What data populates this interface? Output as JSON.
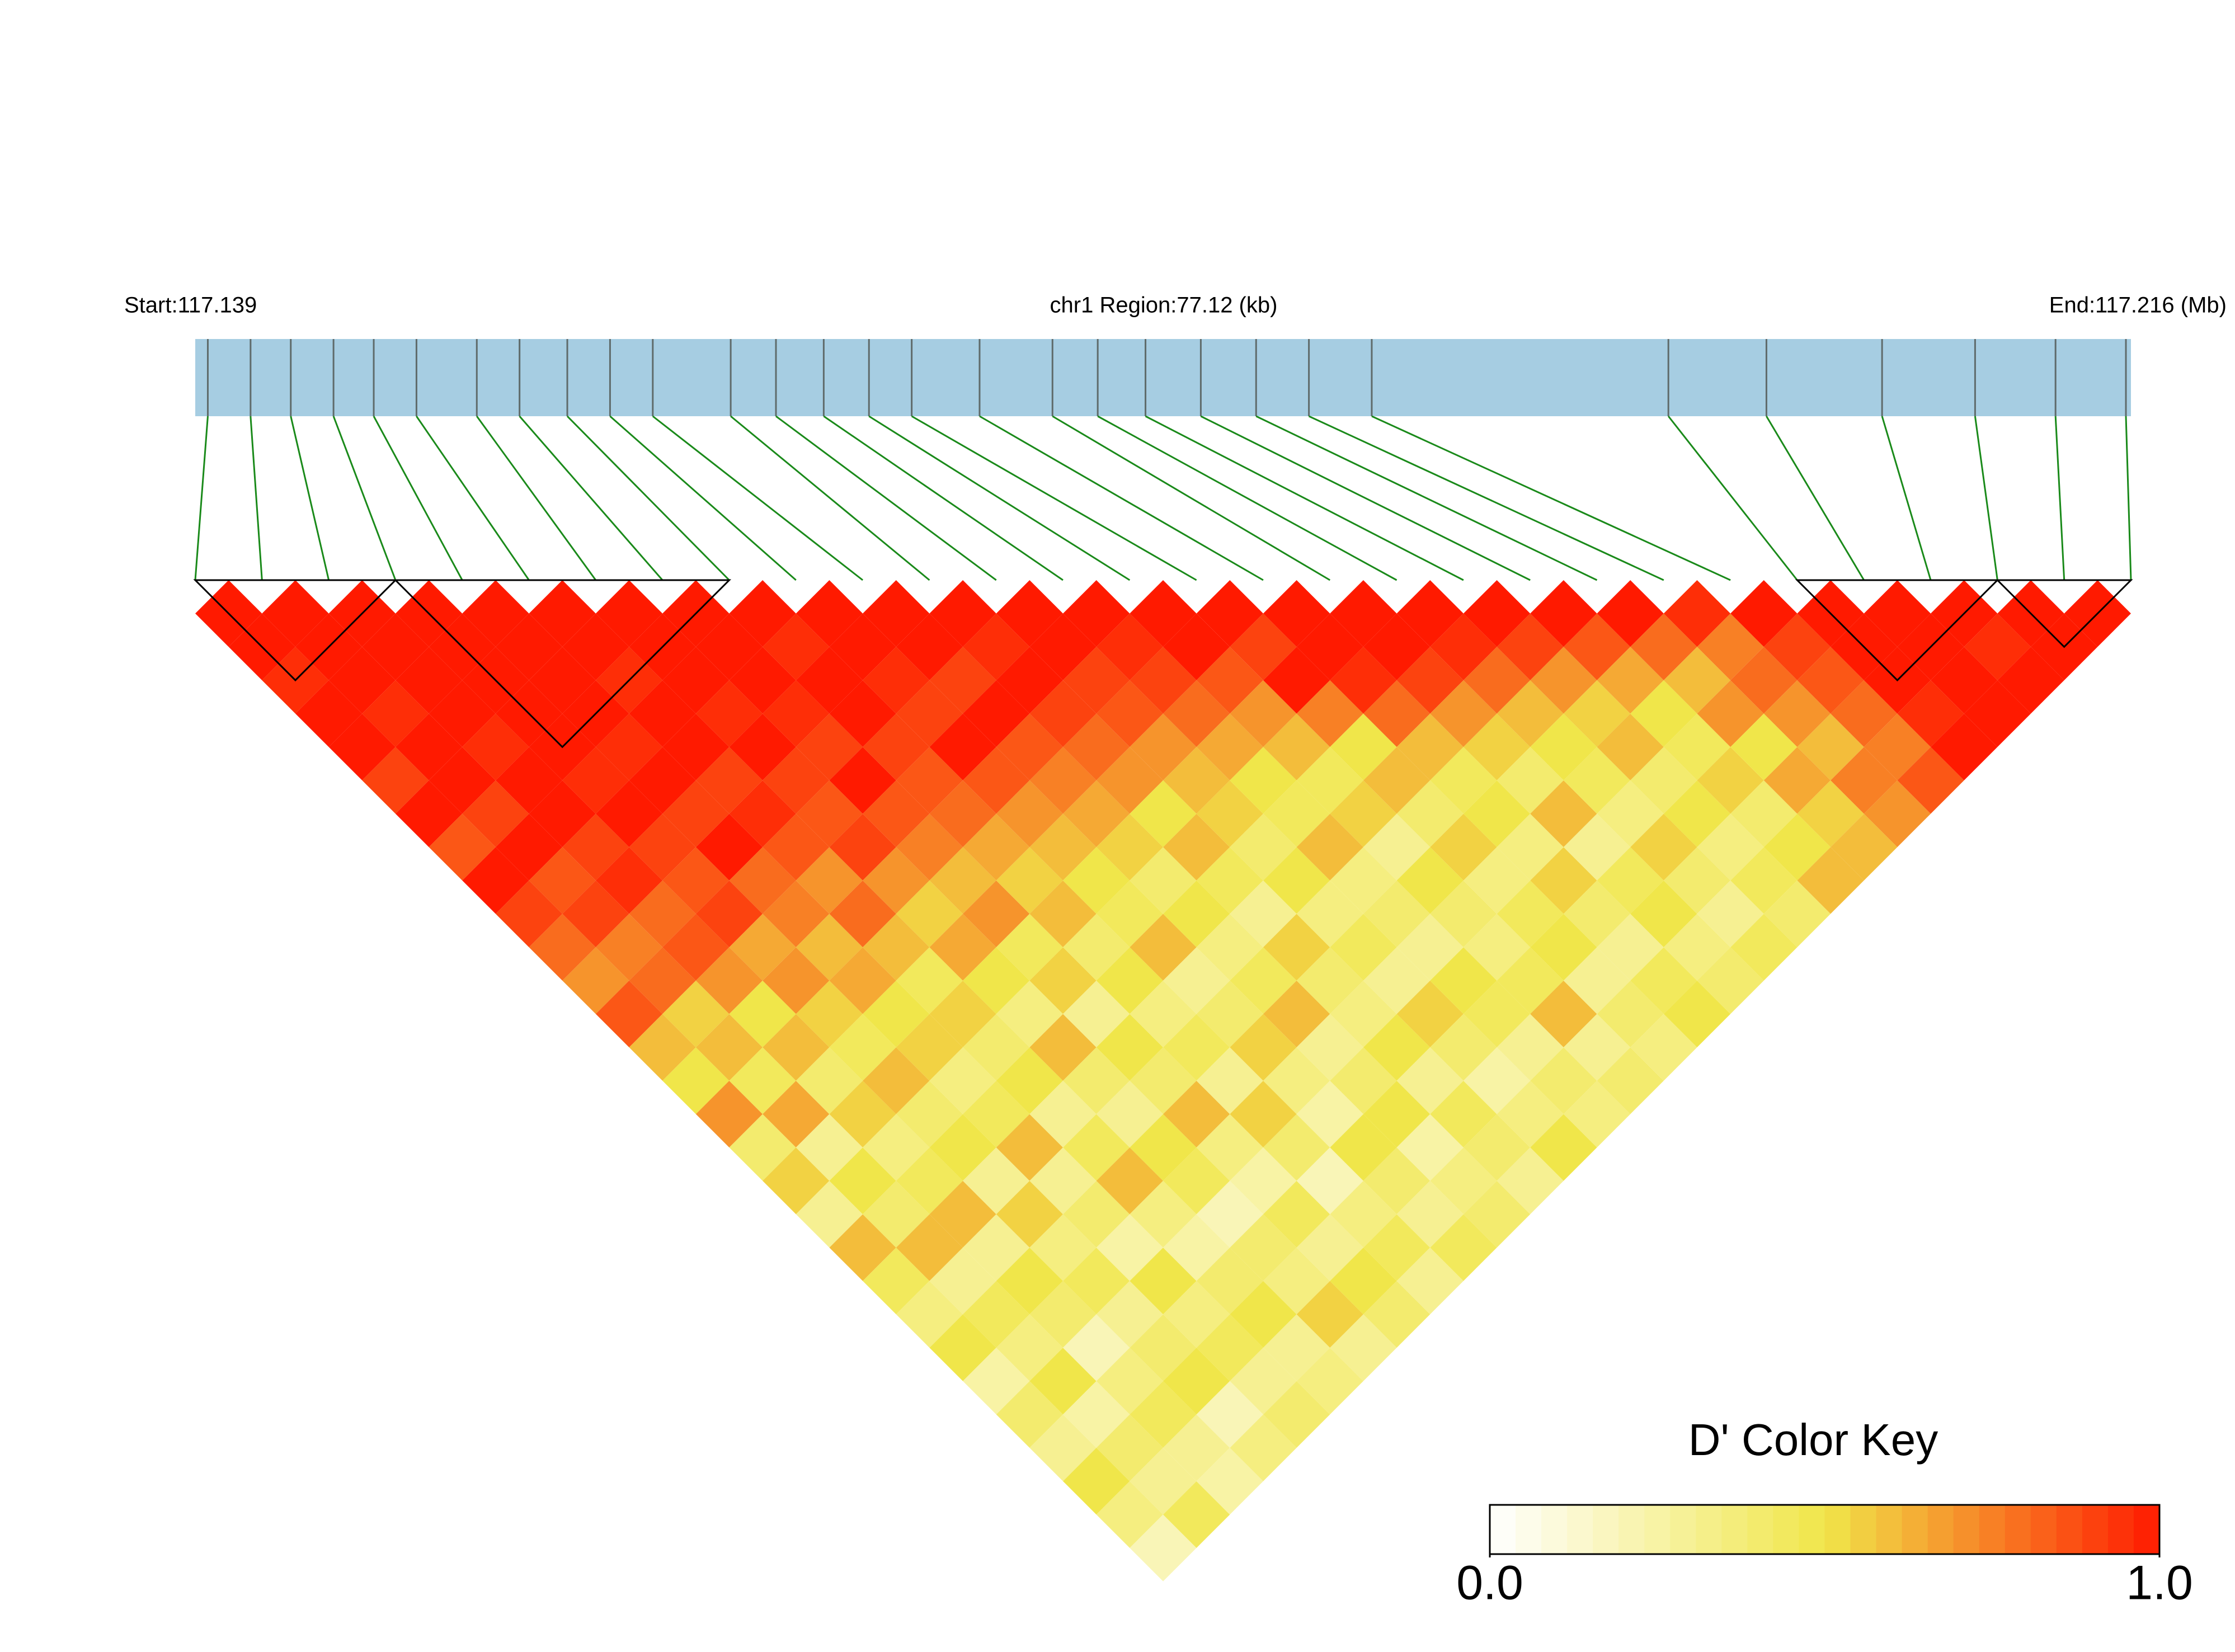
{
  "header": {
    "start": "Start:117.139",
    "region": "chr1 Region:77.12 (kb)",
    "end": "End:117.216 (Mb)"
  },
  "chart_data": {
    "type": "ld_heatmap",
    "xlim": [
      117.139,
      117.216
    ],
    "positions": [
      117.1395,
      117.1412,
      117.1428,
      117.1445,
      117.1461,
      117.1478,
      117.1502,
      117.1519,
      117.1538,
      117.1555,
      117.1572,
      117.1603,
      117.1621,
      117.164,
      117.1658,
      117.1675,
      117.1702,
      117.1731,
      117.1749,
      117.1768,
      117.179,
      117.1812,
      117.1833,
      117.1858,
      117.1976,
      117.2015,
      117.2061,
      117.2098,
      117.213,
      117.2158
    ],
    "marker_color": "#5f6b6b",
    "connector_color": "#1a8a1a",
    "track_color": "#a6cde2",
    "dprime": [
      [
        1,
        1,
        0.95,
        1,
        1,
        0.9,
        1,
        0.85,
        1,
        0.9,
        0.8,
        0.7,
        0.85,
        0.6,
        0.5,
        0.7,
        0.4,
        0.55,
        0.3,
        0.6,
        0.45,
        0.35,
        0.5,
        0.25,
        0.4,
        0.3,
        0.5,
        0.35,
        0.2
      ],
      [
        1,
        1,
        1,
        0.95,
        1,
        1,
        0.9,
        1,
        0.85,
        0.9,
        0.75,
        0.8,
        0.55,
        0.6,
        0.45,
        0.65,
        0.3,
        0.5,
        0.4,
        0.6,
        0.3,
        0.45,
        0.35,
        0.5,
        0.25,
        0.4,
        0.3,
        0.45
      ],
      [
        1,
        1,
        1,
        1,
        0.95,
        1,
        1,
        0.9,
        0.95,
        0.8,
        0.85,
        0.7,
        0.5,
        0.6,
        0.4,
        0.55,
        0.35,
        0.45,
        0.6,
        0.3,
        0.5,
        0.4,
        0.2,
        0.35,
        0.45,
        0.3,
        0.25
      ],
      [
        1,
        1,
        1,
        1,
        1,
        0.95,
        1,
        0.9,
        0.85,
        0.9,
        0.65,
        0.7,
        0.55,
        0.45,
        0.6,
        0.4,
        0.5,
        0.3,
        0.55,
        0.35,
        0.45,
        0.3,
        0.4,
        0.5,
        0.2,
        0.35
      ],
      [
        1,
        1,
        1,
        1,
        0.95,
        1,
        0.9,
        1,
        0.8,
        0.75,
        0.6,
        0.65,
        0.5,
        0.55,
        0.35,
        0.45,
        0.6,
        0.3,
        0.4,
        0.25,
        0.5,
        0.35,
        0.45,
        0.3,
        0.4
      ],
      [
        1,
        1,
        0.95,
        1,
        1,
        0.9,
        0.95,
        0.85,
        0.7,
        0.8,
        0.6,
        0.45,
        0.55,
        0.4,
        0.5,
        0.3,
        0.45,
        0.6,
        0.35,
        0.25,
        0.4,
        0.5,
        0.3,
        0.35
      ],
      [
        1,
        1,
        1,
        0.95,
        1,
        0.9,
        0.85,
        0.9,
        0.7,
        0.55,
        0.65,
        0.5,
        0.35,
        0.6,
        0.4,
        0.3,
        0.5,
        0.45,
        0.2,
        0.4,
        0.35,
        0.55,
        0.3
      ],
      [
        1,
        1,
        1,
        0.95,
        0.9,
        1,
        0.85,
        0.75,
        0.6,
        0.7,
        0.45,
        0.55,
        0.3,
        0.5,
        0.4,
        0.6,
        0.35,
        0.25,
        0.45,
        0.3,
        0.5,
        0.4
      ],
      [
        1,
        0.95,
        1,
        1,
        0.9,
        0.85,
        0.8,
        0.65,
        0.55,
        0.6,
        0.4,
        0.5,
        0.35,
        0.45,
        0.3,
        0.55,
        0.4,
        0.2,
        0.35,
        0.45,
        0.3
      ],
      [
        1,
        1,
        0.95,
        0.9,
        1,
        0.85,
        0.7,
        0.6,
        0.5,
        0.45,
        0.6,
        0.3,
        0.4,
        0.55,
        0.35,
        0.25,
        0.5,
        0.4,
        0.3,
        0.45
      ],
      [
        1,
        1,
        0.9,
        1,
        0.85,
        0.75,
        0.65,
        0.55,
        0.4,
        0.5,
        0.35,
        0.45,
        0.6,
        0.3,
        0.4,
        0.5,
        0.25,
        0.35,
        0.4
      ],
      [
        1,
        0.95,
        1,
        0.9,
        0.8,
        0.7,
        0.5,
        0.6,
        0.45,
        0.3,
        0.55,
        0.4,
        0.35,
        0.5,
        0.3,
        0.45,
        0.4,
        0.3
      ],
      [
        1,
        1,
        0.9,
        0.85,
        0.7,
        0.6,
        0.55,
        0.4,
        0.5,
        0.35,
        0.45,
        0.3,
        0.55,
        0.4,
        0.25,
        0.35,
        0.5
      ],
      [
        1,
        0.95,
        0.9,
        0.8,
        0.65,
        0.5,
        0.45,
        0.6,
        0.35,
        0.4,
        0.3,
        0.5,
        0.45,
        0.3,
        0.4,
        0.35
      ],
      [
        1,
        1,
        0.85,
        0.7,
        0.6,
        0.45,
        0.55,
        0.3,
        0.5,
        0.4,
        0.35,
        0.45,
        0.6,
        0.3,
        0.4
      ],
      [
        1,
        0.9,
        1,
        0.75,
        0.5,
        0.6,
        0.4,
        0.55,
        0.35,
        0.45,
        0.5,
        0.3,
        0.4,
        0.35
      ],
      [
        1,
        1,
        0.95,
        0.8,
        0.6,
        0.45,
        0.5,
        0.35,
        0.55,
        0.4,
        0.3,
        0.45,
        0.5
      ],
      [
        1,
        1,
        0.9,
        0.7,
        0.55,
        0.4,
        0.6,
        0.3,
        0.45,
        0.5,
        0.35,
        0.4
      ],
      [
        1,
        0.95,
        0.8,
        0.6,
        0.5,
        0.45,
        0.35,
        0.55,
        0.4,
        0.3,
        0.45
      ],
      [
        1,
        0.9,
        0.7,
        0.55,
        0.6,
        0.4,
        0.5,
        0.35,
        0.45,
        0.4
      ],
      [
        1,
        0.85,
        0.65,
        0.5,
        0.45,
        0.55,
        0.4,
        0.5,
        0.6
      ],
      [
        1,
        0.8,
        0.6,
        0.7,
        0.5,
        0.65,
        0.55,
        0.6
      ],
      [
        0.95,
        0.75,
        0.8,
        0.7,
        0.6,
        0.75,
        0.7
      ],
      [
        1,
        0.9,
        0.85,
        0.8,
        0.75,
        0.85
      ],
      [
        1,
        1,
        1,
        0.95,
        1
      ],
      [
        1,
        1,
        1,
        1
      ],
      [
        1,
        0.95,
        1
      ],
      [
        1,
        1
      ],
      [
        1
      ]
    ],
    "blocks": [
      [
        0,
        3
      ],
      [
        3,
        8
      ],
      [
        24,
        27
      ],
      [
        27,
        29
      ]
    ],
    "color_key": {
      "title": "D' Color Key",
      "range": [
        0,
        1
      ],
      "ticks": [
        {
          "value": 0,
          "label": "0.0"
        },
        {
          "value": 1,
          "label": "1.0"
        }
      ],
      "colors": [
        "#ffffff",
        "#f0e64a",
        "#ff1a00"
      ]
    }
  }
}
